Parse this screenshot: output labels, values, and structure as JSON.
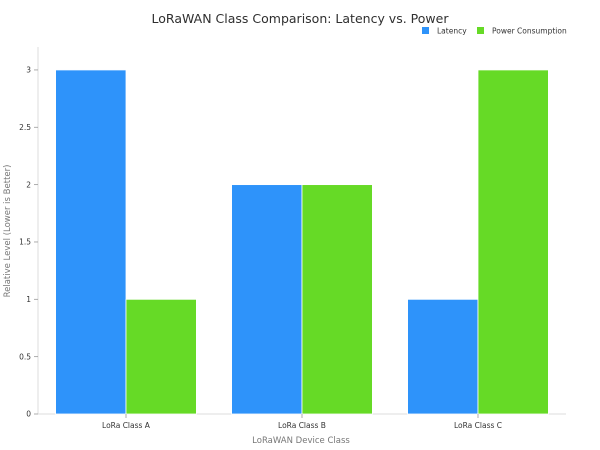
{
  "chart_data": {
    "type": "bar",
    "title": "LoRaWAN Class Comparison: Latency vs. Power",
    "xlabel": "LoRaWAN Device Class",
    "ylabel": "Relative Level (Lower is Better)",
    "categories": [
      "LoRa Class A",
      "LoRa Class B",
      "LoRa Class C"
    ],
    "series": [
      {
        "name": "Latency",
        "values": [
          3,
          2,
          1
        ],
        "color": "#2E93FA"
      },
      {
        "name": "Power Consumption",
        "values": [
          1,
          2,
          3
        ],
        "color": "#66DA26"
      }
    ],
    "ylim": [
      0,
      3.2
    ],
    "yticks": [
      0,
      0.5,
      1,
      1.5,
      2,
      2.5,
      3
    ],
    "ytick_labels": [
      "0",
      "0.5",
      "1",
      "1.5",
      "2",
      "2.5",
      "3"
    ],
    "grid": false,
    "legend_position": "top-right"
  }
}
